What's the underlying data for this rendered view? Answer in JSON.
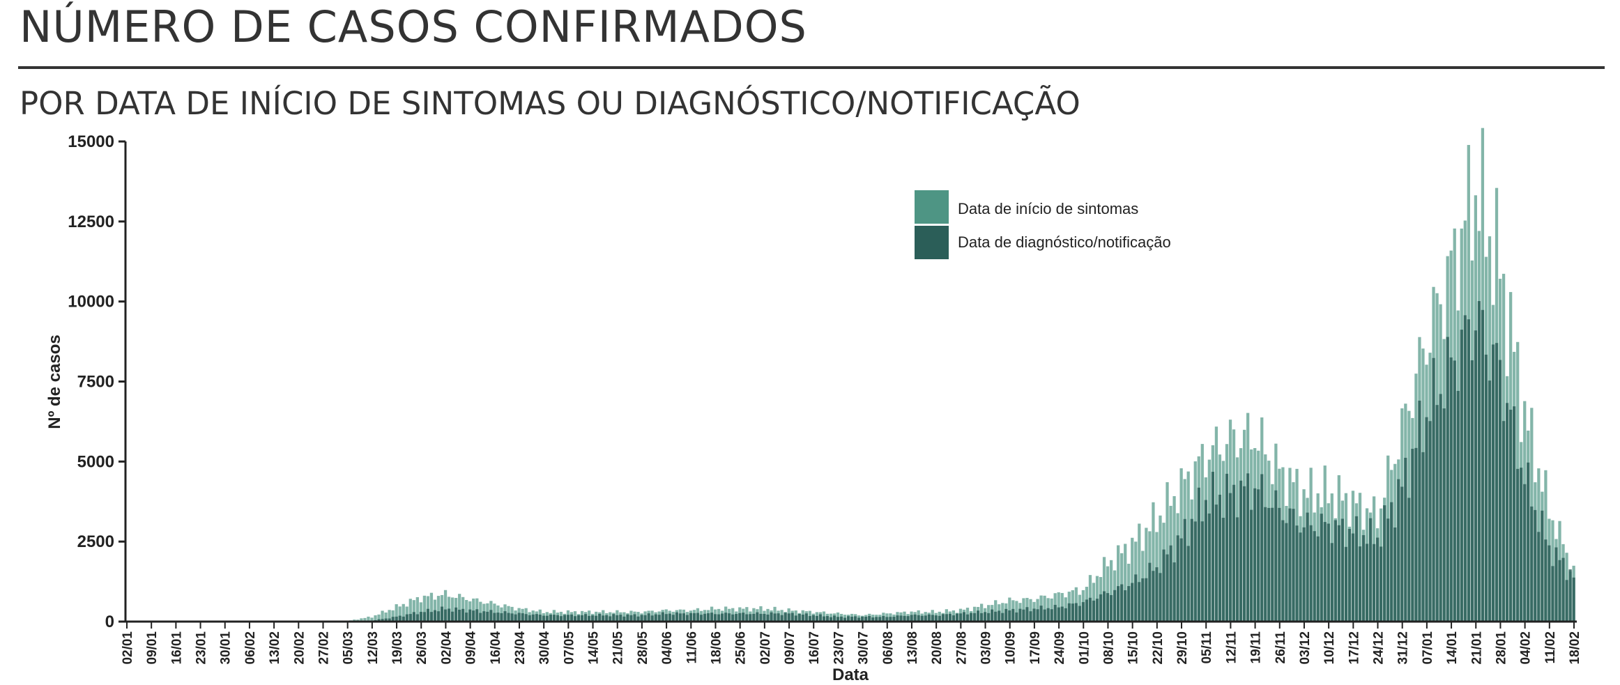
{
  "header": {
    "title": "NÚMERO DE CASOS CONFIRMADOS",
    "subtitle": "POR DATA DE INÍCIO DE SINTOMAS OU DIAGNÓSTICO/NOTIFICAÇÃO"
  },
  "chart_data": {
    "type": "bar",
    "xlabel": "Data",
    "ylabel": "Nº de casos",
    "ylim": [
      0,
      15000
    ],
    "yticks": [
      0,
      2500,
      5000,
      7500,
      10000,
      12500,
      15000
    ],
    "x_tick_labels": [
      "02/01",
      "09/01",
      "16/01",
      "23/01",
      "30/01",
      "06/02",
      "13/02",
      "20/02",
      "27/02",
      "05/03",
      "12/03",
      "19/03",
      "26/03",
      "02/04",
      "09/04",
      "16/04",
      "23/04",
      "30/04",
      "07/05",
      "14/05",
      "21/05",
      "28/05",
      "04/06",
      "11/06",
      "18/06",
      "25/06",
      "02/07",
      "09/07",
      "16/07",
      "23/07",
      "30/07",
      "06/08",
      "13/08",
      "20/08",
      "27/08",
      "03/09",
      "10/09",
      "17/09",
      "24/09",
      "01/10",
      "08/10",
      "15/10",
      "22/10",
      "29/10",
      "05/11",
      "12/11",
      "19/11",
      "26/11",
      "03/12",
      "10/12",
      "17/12",
      "24/12",
      "31/12",
      "07/01",
      "14/01",
      "21/01",
      "28/01",
      "04/02",
      "11/02",
      "18/02"
    ],
    "grid": false,
    "legend_position": "top-center",
    "colors": {
      "symptoms": "#4e9584",
      "diagnosis": "#2b5e58"
    },
    "series": [
      {
        "name": "Data de início de sintomas",
        "color": "#4e9584",
        "weekly_values": [
          0,
          0,
          0,
          0,
          0,
          0,
          0,
          0,
          0,
          20,
          150,
          450,
          750,
          850,
          700,
          550,
          400,
          300,
          300,
          300,
          300,
          300,
          350,
          350,
          400,
          400,
          400,
          350,
          300,
          250,
          200,
          250,
          300,
          300,
          350,
          500,
          650,
          700,
          850,
          1000,
          1800,
          2400,
          3200,
          4200,
          5200,
          5700,
          5800,
          4700,
          4000,
          4000,
          3700,
          3300,
          6000,
          8800,
          11000,
          13500,
          11000,
          6500,
          3500,
          1600
        ]
      },
      {
        "name": "Data de diagnóstico/notificação",
        "color": "#2b5e58",
        "weekly_values": [
          0,
          0,
          0,
          0,
          0,
          0,
          0,
          0,
          0,
          0,
          30,
          150,
          300,
          400,
          350,
          300,
          250,
          200,
          200,
          200,
          200,
          200,
          250,
          250,
          250,
          250,
          250,
          250,
          200,
          150,
          150,
          150,
          200,
          200,
          250,
          300,
          350,
          400,
          450,
          600,
          900,
          1200,
          1700,
          2600,
          3800,
          4000,
          4200,
          3500,
          3000,
          3000,
          2800,
          2600,
          4200,
          6500,
          8000,
          9500,
          7800,
          4500,
          2300,
          1400
        ]
      }
    ]
  }
}
